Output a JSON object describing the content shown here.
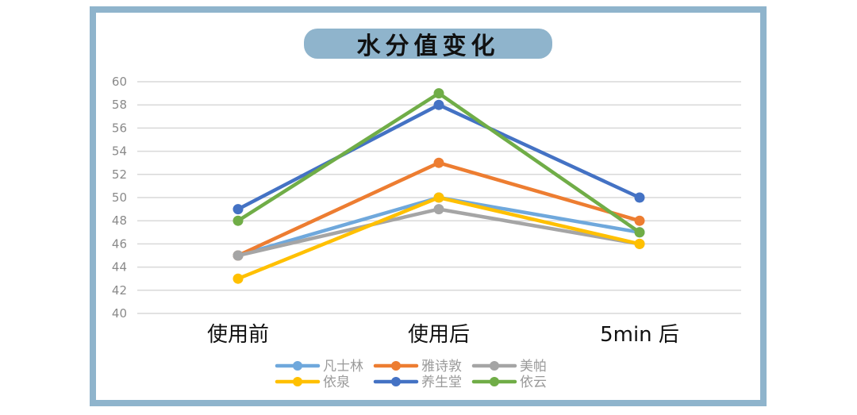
{
  "chart_data": {
    "type": "line",
    "title": "水分值变化",
    "xlabel": "",
    "ylabel": "",
    "categories": [
      "使用前",
      "使用后",
      "5min 后"
    ],
    "ylim": [
      40,
      60
    ],
    "yticks": [
      60,
      58,
      56,
      54,
      52,
      50,
      48,
      46,
      44,
      42,
      40
    ],
    "grid": true,
    "legend_position": "bottom",
    "series": [
      {
        "name": "凡士林",
        "color": "#6fa8dc",
        "values": [
          45,
          50,
          47
        ]
      },
      {
        "name": "雅诗敦",
        "color": "#ed7d31",
        "values": [
          45,
          53,
          48
        ]
      },
      {
        "name": "美帕",
        "color": "#a5a5a5",
        "values": [
          45,
          49,
          46
        ]
      },
      {
        "name": "依泉",
        "color": "#ffc000",
        "values": [
          43,
          50,
          46
        ]
      },
      {
        "name": "养生堂",
        "color": "#4472c4",
        "values": [
          49,
          58,
          50
        ]
      },
      {
        "name": "依云",
        "color": "#70ad47",
        "values": [
          48,
          59,
          47
        ]
      }
    ]
  },
  "colors": {
    "frame": "#8fb4cc",
    "gridline": "#d9d9d9"
  }
}
